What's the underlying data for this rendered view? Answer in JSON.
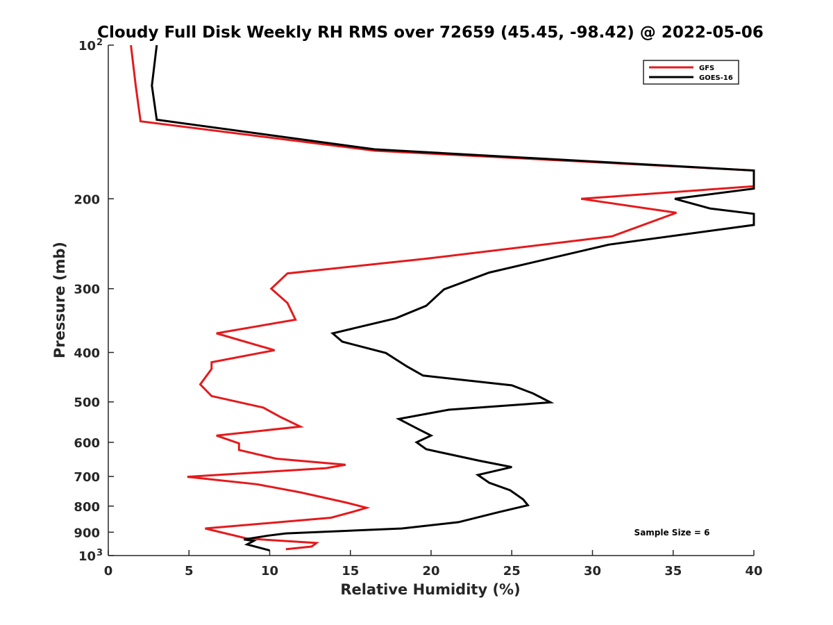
{
  "chart_data": {
    "type": "line",
    "title": "Cloudy Full Disk Weekly RH RMS over 72659 (45.45, -98.42) @ 2022-05-06",
    "xlabel": "Relative Humidity (%)",
    "ylabel": "Pressure (mb)",
    "xlim": [
      0,
      40
    ],
    "ylim": [
      100,
      1000
    ],
    "y_scale": "log",
    "y_reversed": true,
    "grid": false,
    "x_ticks": [
      "0",
      "5",
      "10",
      "15",
      "20",
      "25",
      "30",
      "35",
      "40"
    ],
    "y_ticks": [
      {
        "value": 100,
        "label": "10",
        "sup": "2"
      },
      {
        "value": 200,
        "label": "200",
        "sup": ""
      },
      {
        "value": 300,
        "label": "300",
        "sup": ""
      },
      {
        "value": 400,
        "label": "400",
        "sup": ""
      },
      {
        "value": 500,
        "label": "500",
        "sup": ""
      },
      {
        "value": 600,
        "label": "600",
        "sup": ""
      },
      {
        "value": 700,
        "label": "700",
        "sup": ""
      },
      {
        "value": 800,
        "label": "800",
        "sup": ""
      },
      {
        "value": 900,
        "label": "900",
        "sup": ""
      },
      {
        "value": 1000,
        "label": "10",
        "sup": "3"
      }
    ],
    "legend_position": "top-right",
    "annotation": "Sample Size = 6",
    "series": [
      {
        "name": "GFS",
        "color": "#e41a1c",
        "points": [
          [
            1.4,
            100
          ],
          [
            1.7,
            120
          ],
          [
            2.0,
            141
          ],
          [
            16.5,
            161
          ],
          [
            40,
            176
          ],
          [
            40,
            189
          ],
          [
            29.3,
            200
          ],
          [
            35.2,
            213
          ],
          [
            31.2,
            237
          ],
          [
            19.7,
            262
          ],
          [
            11.1,
            280
          ],
          [
            10.1,
            300
          ],
          [
            11.1,
            320
          ],
          [
            11.6,
            345
          ],
          [
            6.7,
            367
          ],
          [
            10.3,
            396
          ],
          [
            6.4,
            418
          ],
          [
            6.4,
            431
          ],
          [
            5.7,
            462
          ],
          [
            6.4,
            487
          ],
          [
            9.6,
            513
          ],
          [
            10.7,
            536
          ],
          [
            11.9,
            559
          ],
          [
            6.7,
            582
          ],
          [
            8.1,
            603
          ],
          [
            8.1,
            621
          ],
          [
            10.4,
            646
          ],
          [
            14.7,
            664
          ],
          [
            13.5,
            674
          ],
          [
            4.9,
            701
          ],
          [
            9.2,
            725
          ],
          [
            11.9,
            752
          ],
          [
            14.7,
            787
          ],
          [
            16.0,
            806
          ],
          [
            15.2,
            820
          ],
          [
            13.8,
            843
          ],
          [
            6.0,
            885
          ],
          [
            8.6,
            926
          ],
          [
            12.9,
            945
          ],
          [
            12.6,
            960
          ],
          [
            11.0,
            972
          ]
        ]
      },
      {
        "name": "GOES-16",
        "color": "#000000",
        "points": [
          [
            3.0,
            100
          ],
          [
            2.7,
            120
          ],
          [
            3.0,
            140
          ],
          [
            16.5,
            160
          ],
          [
            40,
            176
          ],
          [
            40,
            191
          ],
          [
            35.1,
            200
          ],
          [
            37.3,
            209
          ],
          [
            40,
            214
          ],
          [
            40,
            225
          ],
          [
            31.0,
            246
          ],
          [
            23.6,
            279
          ],
          [
            20.8,
            301
          ],
          [
            19.7,
            324
          ],
          [
            17.8,
            343
          ],
          [
            13.9,
            367
          ],
          [
            14.5,
            381
          ],
          [
            17.2,
            401
          ],
          [
            18.5,
            426
          ],
          [
            19.5,
            444
          ],
          [
            25.0,
            464
          ],
          [
            26.3,
            481
          ],
          [
            27.4,
            501
          ],
          [
            21.1,
            518
          ],
          [
            18.0,
            540
          ],
          [
            19.2,
            565
          ],
          [
            20.0,
            582
          ],
          [
            19.1,
            600
          ],
          [
            19.7,
            619
          ],
          [
            23.0,
            652
          ],
          [
            25.0,
            671
          ],
          [
            22.9,
            695
          ],
          [
            23.6,
            720
          ],
          [
            24.9,
            745
          ],
          [
            25.7,
            776
          ],
          [
            26.0,
            797
          ],
          [
            24.2,
            822
          ],
          [
            21.7,
            860
          ],
          [
            18.2,
            885
          ],
          [
            11.0,
            905
          ],
          [
            9.9,
            914
          ],
          [
            8.4,
            930
          ],
          [
            9.0,
            936
          ],
          [
            8.6,
            951
          ],
          [
            10.0,
            977
          ]
        ]
      }
    ]
  }
}
